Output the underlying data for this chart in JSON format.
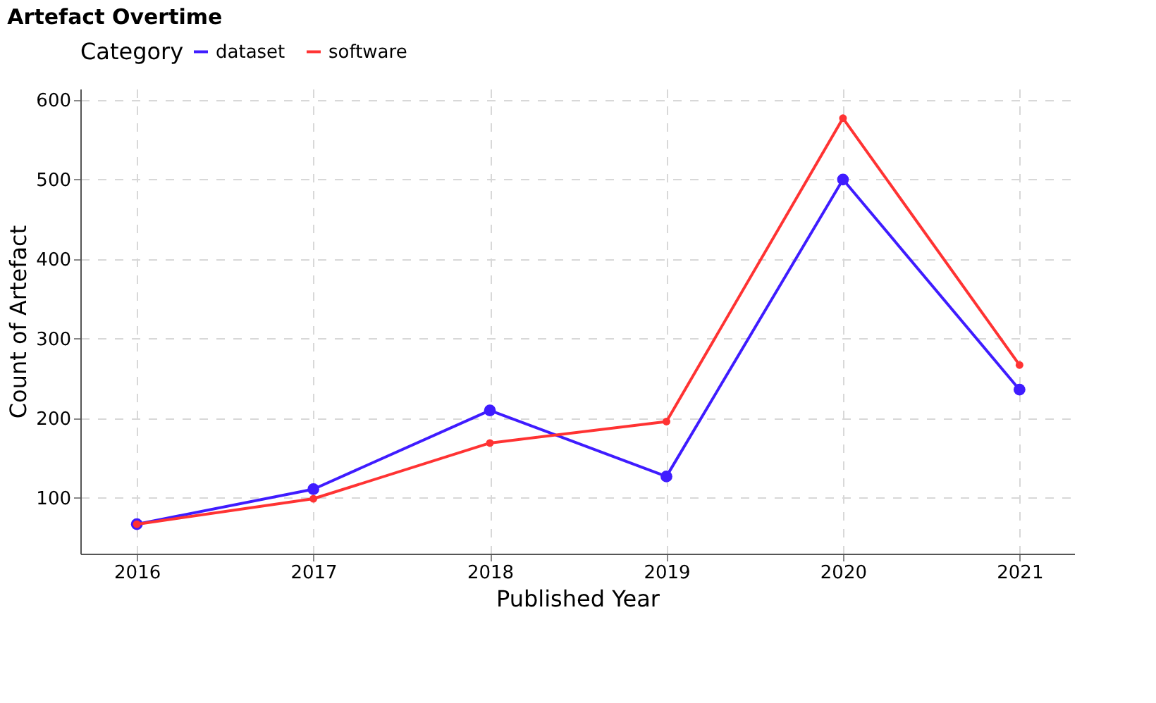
{
  "chart_data": {
    "type": "line",
    "title": "Artefact Overtime",
    "xlabel": "Published Year",
    "ylabel": "Count of Artefact",
    "legend_title": "Category",
    "x": [
      2016,
      2017,
      2018,
      2019,
      2020,
      2021
    ],
    "series": [
      {
        "name": "dataset",
        "color": "#3f1cff",
        "values": [
          67,
          111,
          210,
          127,
          500,
          236
        ]
      },
      {
        "name": "software",
        "color": "#ff3333",
        "values": [
          67,
          99,
          169,
          196,
          577,
          267
        ]
      }
    ],
    "xlim": [
      2015.68,
      2021.31
    ],
    "xticks": [
      2016,
      2017,
      2018,
      2019,
      2020,
      2021
    ],
    "ylim": [
      30,
      614
    ],
    "yticks": [
      100,
      200,
      300,
      400,
      500,
      600
    ],
    "grid": true,
    "legend": "top",
    "marker": "circle",
    "line_style": "solid"
  }
}
